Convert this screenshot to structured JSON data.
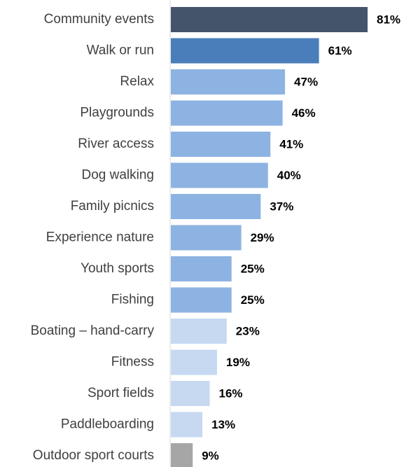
{
  "chart_data": {
    "type": "bar",
    "orientation": "horizontal",
    "categories": [
      "Community events",
      "Walk or run",
      "Relax",
      "Playgrounds",
      "River access",
      "Dog walking",
      "Family picnics",
      "Experience nature",
      "Youth sports",
      "Fishing",
      "Boating – hand-carry",
      "Fitness",
      "Sport fields",
      "Paddleboarding",
      "Outdoor sport courts"
    ],
    "values": [
      81,
      61,
      47,
      46,
      41,
      40,
      37,
      29,
      25,
      25,
      23,
      19,
      16,
      13,
      9
    ],
    "value_labels": [
      "81%",
      "61%",
      "47%",
      "46%",
      "41%",
      "40%",
      "37%",
      "29%",
      "25%",
      "25%",
      "23%",
      "19%",
      "16%",
      "13%",
      "9%"
    ],
    "unit": "%",
    "xlim": [
      0,
      81
    ],
    "grid": false,
    "legend": "none",
    "bar_colors": [
      "#44546a",
      "#4a7ebb",
      "#8db3e2",
      "#8db3e2",
      "#8db3e2",
      "#8db3e2",
      "#8db3e2",
      "#8db3e2",
      "#8db3e2",
      "#8db3e2",
      "#c6d9f1",
      "#c6d9f1",
      "#c6d9f1",
      "#c6d9f1",
      "#a6a6a6"
    ]
  }
}
